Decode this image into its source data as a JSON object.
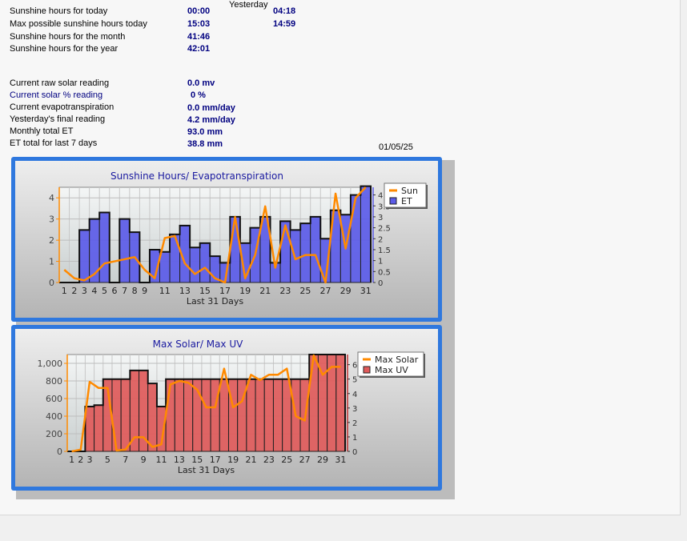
{
  "header": {
    "yesterday_label": "Yesterday"
  },
  "sunshine_rows": [
    {
      "label": "Sunshine hours for today",
      "today": "00:00",
      "yesterday": "04:18"
    },
    {
      "label": "Max possible sunshine hours today",
      "today": "15:03",
      "yesterday": "14:59"
    },
    {
      "label": "Sunshine hours for the month",
      "today": "41:46",
      "yesterday": ""
    },
    {
      "label": "Sunshine hours for the year",
      "today": "42:01",
      "yesterday": ""
    }
  ],
  "solar_rows": [
    {
      "label": "Current raw solar reading",
      "value": "0.0 mv"
    },
    {
      "label": "Current solar % reading",
      "value": "0 %"
    },
    {
      "label": "Current evapotranspiration",
      "value": "0.0 mm/day"
    },
    {
      "label": "Yesterday's final reading",
      "value": "4.2 mm/day"
    },
    {
      "label": "Monthly total ET",
      "value": "93.0 mm"
    },
    {
      "label": "ET total for last 7 days",
      "value": "38.8 mm"
    }
  ],
  "date": "01/05/25",
  "colors": {
    "frame": "#2f78de",
    "et_fill": "#5b5be8",
    "uv_fill": "#e05a5a",
    "line": "#ff8a00",
    "title": "#1a1aa0"
  },
  "chart_data": [
    {
      "type": "bar",
      "title": "Sunshine Hours/ Evapotranspiration",
      "xlabel": "Last 31 Days",
      "x": [
        1,
        2,
        3,
        4,
        5,
        6,
        7,
        8,
        9,
        10,
        11,
        12,
        13,
        14,
        15,
        16,
        17,
        18,
        19,
        20,
        21,
        22,
        23,
        24,
        25,
        26,
        27,
        28,
        29,
        30,
        31
      ],
      "x_tick_labels": [
        "1",
        "2",
        "3",
        "4",
        "5",
        "6",
        "7",
        "8",
        "9",
        "11",
        "13",
        "15",
        "17",
        "19",
        "21",
        "23",
        "25",
        "27",
        "29",
        "31"
      ],
      "left_ticks": [
        "0",
        "1",
        "2",
        "3",
        "4"
      ],
      "right_ticks": [
        "0",
        "0.5",
        "1",
        "1.5",
        "2",
        "2.5",
        "3",
        "3.5",
        "4"
      ],
      "legend_position": "top-right",
      "series": [
        {
          "name": "Sun",
          "type": "line",
          "axis": "left",
          "values": [
            0.6,
            0.2,
            0.1,
            0.4,
            0.9,
            1.0,
            1.1,
            1.2,
            0.6,
            0.2,
            2.1,
            2.2,
            0.9,
            0.4,
            0.7,
            0.2,
            0.0,
            3.1,
            0.2,
            1.3,
            3.6,
            0.7,
            2.7,
            1.1,
            1.3,
            1.3,
            0.0,
            4.2,
            1.6,
            4.0,
            4.5
          ]
        },
        {
          "name": "ET",
          "type": "bar",
          "axis": "right",
          "values": [
            0,
            0,
            2.4,
            2.9,
            3.2,
            0,
            2.9,
            2.3,
            0,
            1.5,
            1.4,
            2.2,
            2.6,
            1.6,
            1.8,
            1.2,
            0.9,
            3.0,
            1.8,
            2.5,
            3.0,
            0.9,
            2.8,
            2.4,
            2.7,
            3.0,
            2.0,
            3.3,
            3.1,
            4.0,
            4.4
          ]
        }
      ]
    },
    {
      "type": "bar",
      "title": "Max Solar/ Max UV",
      "xlabel": "Last 31 Days",
      "x": [
        1,
        2,
        3,
        4,
        5,
        6,
        7,
        8,
        9,
        10,
        11,
        12,
        13,
        14,
        15,
        16,
        17,
        18,
        19,
        20,
        21,
        22,
        23,
        24,
        25,
        26,
        27,
        28,
        29,
        30,
        31
      ],
      "x_tick_labels": [
        "1",
        "2",
        "3",
        "5",
        "7",
        "9",
        "11",
        "13",
        "15",
        "17",
        "19",
        "21",
        "23",
        "25",
        "27",
        "29",
        "31"
      ],
      "left_ticks": [
        "0",
        "200",
        "400",
        "600",
        "800",
        "1,000"
      ],
      "right_ticks": [
        "0",
        "1",
        "2",
        "3",
        "4",
        "5",
        "6"
      ],
      "legend_position": "top-right",
      "series": [
        {
          "name": "Max Solar",
          "type": "line",
          "axis": "left",
          "values": [
            0,
            20,
            790,
            720,
            720,
            10,
            20,
            160,
            160,
            50,
            80,
            760,
            800,
            780,
            700,
            500,
            500,
            940,
            500,
            570,
            870,
            810,
            870,
            870,
            940,
            400,
            350,
            1090,
            870,
            960,
            960
          ]
        },
        {
          "name": "Max UV",
          "type": "bar",
          "axis": "right",
          "values": [
            0,
            0,
            3.1,
            3.2,
            5.0,
            5.0,
            5.0,
            5.6,
            5.6,
            4.7,
            3.1,
            5.0,
            5.0,
            5.0,
            5.0,
            5.0,
            5.0,
            5.0,
            5.0,
            5.0,
            5.0,
            5.0,
            5.0,
            5.0,
            5.0,
            5.0,
            5.0,
            6.7,
            6.7,
            6.7,
            6.7
          ]
        }
      ]
    }
  ]
}
